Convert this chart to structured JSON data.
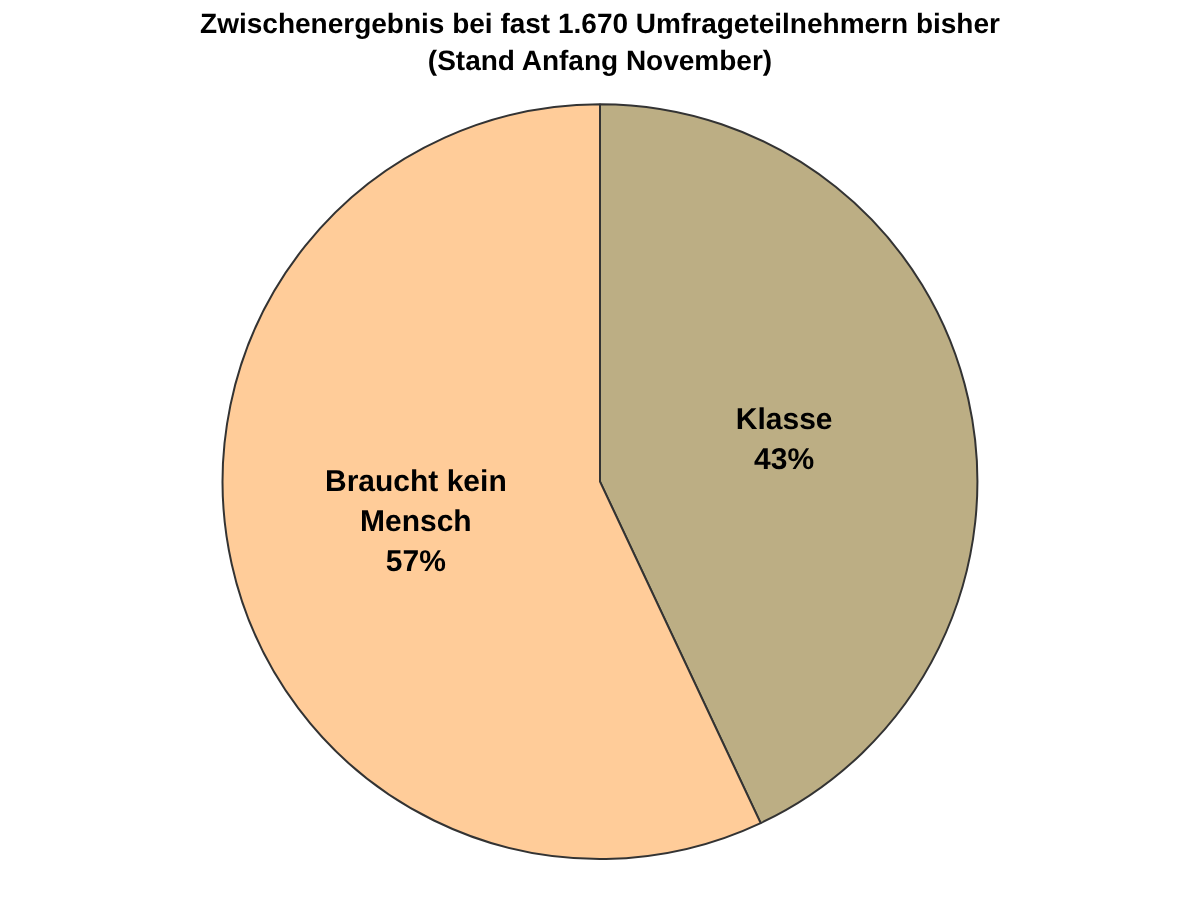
{
  "chart_data": {
    "type": "pie",
    "title": "Zwischenergebnis bei fast 1.670 Umfrageteilnehmern bisher",
    "subtitle": "(Stand Anfang November)",
    "categories": [
      "Klasse",
      "Braucht kein Mensch"
    ],
    "values": [
      43,
      57
    ],
    "colors": [
      "#bcae84",
      "#ffcc99"
    ],
    "value_labels": [
      "43%",
      "57%"
    ],
    "legend": false
  }
}
